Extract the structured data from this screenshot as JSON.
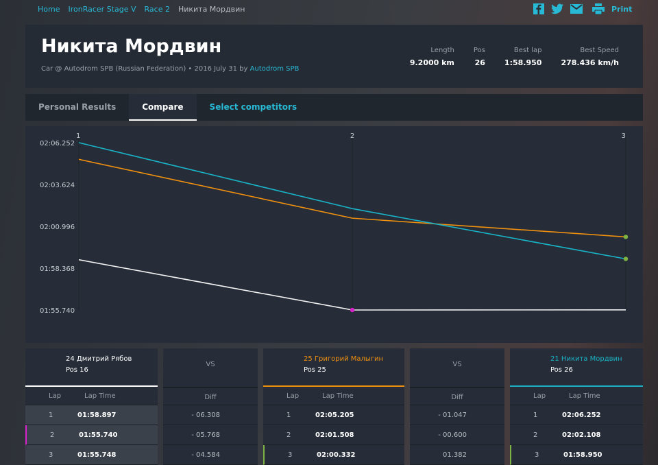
{
  "breadcrumb": [
    "Home",
    "IronRacer Stage V",
    "Race 2",
    "Никита Мордвин"
  ],
  "share": {
    "print": "Print"
  },
  "header": {
    "title": "Никита Мордвин",
    "subtitle": "Car @ Autodrom SPB (Russian Federation) • 2016 July 31 by",
    "author": "Autodrom SPB",
    "stats": [
      {
        "label": "Length",
        "value": "9.2000 km"
      },
      {
        "label": "Pos",
        "value": "26"
      },
      {
        "label": "Best lap",
        "value": "1:58.950"
      },
      {
        "label": "Best Speed",
        "value": "278.436 km/h"
      }
    ]
  },
  "tabs": [
    "Personal Results",
    "Compare",
    "Select competitors"
  ],
  "active_tab": 1,
  "chart_data": {
    "type": "line",
    "x": [
      1,
      2,
      3
    ],
    "xlim": [
      1,
      3
    ],
    "xticks": [
      1,
      2,
      3
    ],
    "ylim": [
      115.74,
      126.252
    ],
    "yticks": [
      {
        "value": 126.252,
        "label": "02:06.252"
      },
      {
        "value": 123.624,
        "label": "02:03.624"
      },
      {
        "value": 120.996,
        "label": "02:00.996"
      },
      {
        "value": 118.368,
        "label": "01:58.368"
      },
      {
        "value": 115.74,
        "label": "01:55.740"
      }
    ],
    "grid": true,
    "series": [
      {
        "color": "#f2f2f2",
        "values": [
          118.897,
          115.74,
          115.748
        ]
      },
      {
        "color": "#f0900f",
        "values": [
          125.205,
          121.508,
          120.332
        ]
      },
      {
        "color": "#19b2c6",
        "values": [
          126.252,
          122.108,
          118.95
        ]
      }
    ],
    "markers": [
      {
        "series": 0,
        "index": 1,
        "color": "#d622c8"
      },
      {
        "series": 1,
        "index": 2,
        "color": "#7cb342"
      },
      {
        "series": 2,
        "index": 2,
        "color": "#7cb342"
      }
    ]
  },
  "compare": {
    "lap_headers": [
      "Lap",
      "Lap Time"
    ],
    "drivers": [
      {
        "number": "24",
        "name": "Дмитрий Рябов",
        "pos": "Pos 16",
        "color": "#ffffff",
        "row_bg": "#3a414b",
        "accent": {
          "row": 1,
          "color": "#d622c8"
        },
        "rows": [
          [
            "1",
            "01:58.897"
          ],
          [
            "2",
            "01:55.740"
          ],
          [
            "3",
            "01:55.748"
          ]
        ]
      },
      {
        "number": "25",
        "name": "Григорий Малыгин",
        "pos": "Pos 25",
        "color": "#f0900f",
        "row_bg": "#262d38",
        "accent": {
          "row": 2,
          "color": "#7cb342"
        },
        "rows": [
          [
            "1",
            "02:05.205"
          ],
          [
            "2",
            "02:01.508"
          ],
          [
            "3",
            "02:00.332"
          ]
        ]
      },
      {
        "number": "21",
        "name": "Никита Мордвин",
        "pos": "Pos 26",
        "color": "#19b2c6",
        "row_bg": "#262d38",
        "accent": {
          "row": 2,
          "color": "#7cb342"
        },
        "rows": [
          [
            "1",
            "02:06.252"
          ],
          [
            "2",
            "02:02.108"
          ],
          [
            "3",
            "01:58.950"
          ]
        ]
      }
    ],
    "diffs": [
      {
        "label": "VS",
        "header": "Diff",
        "rows": [
          {
            "diff": "- 06.308",
            "dir": "up"
          },
          {
            "diff": "- 05.768",
            "dir": "up"
          },
          {
            "diff": "- 04.584",
            "dir": "up"
          }
        ]
      },
      {
        "label": "VS",
        "header": "Diff",
        "rows": [
          {
            "diff": "- 01.047",
            "dir": "up"
          },
          {
            "diff": "- 00.600",
            "dir": "up"
          },
          {
            "diff": "01.382",
            "dir": "down"
          }
        ]
      }
    ]
  }
}
